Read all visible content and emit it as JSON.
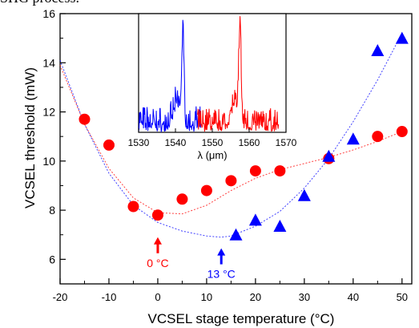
{
  "page": {
    "top_text": "SHG process."
  },
  "chart_data": [
    {
      "type": "scatter",
      "xlabel": "VCSEL stage temperature (°C)",
      "ylabel": "VCSEL threshold (mW)",
      "xlim": [
        -20,
        52
      ],
      "ylim": [
        5,
        16
      ],
      "xticks": [
        "-20",
        "-10",
        "0",
        "10",
        "20",
        "30",
        "40",
        "50"
      ],
      "yticks": [
        "6",
        "8",
        "10",
        "12",
        "14",
        "16"
      ],
      "grid": false,
      "series": [
        {
          "marker": "circle",
          "color": "#ff0000",
          "points": [
            [
              -15,
              11.7
            ],
            [
              -10,
              10.65
            ],
            [
              -5,
              8.15
            ],
            [
              0,
              7.8
            ],
            [
              5,
              8.45
            ],
            [
              10,
              8.8
            ],
            [
              15,
              9.2
            ],
            [
              20,
              9.6
            ],
            [
              25,
              9.6
            ],
            [
              35,
              10.1
            ],
            [
              45,
              11.0
            ],
            [
              50,
              11.2
            ]
          ],
          "fit": [
            [
              -20,
              13.9
            ],
            [
              -15,
              11.5
            ],
            [
              -10,
              9.7
            ],
            [
              -5,
              8.5
            ],
            [
              0,
              7.9
            ],
            [
              5,
              7.85
            ],
            [
              10,
              8.2
            ],
            [
              15,
              8.8
            ],
            [
              20,
              9.3
            ],
            [
              25,
              9.65
            ],
            [
              30,
              9.9
            ],
            [
              35,
              10.15
            ],
            [
              40,
              10.45
            ],
            [
              45,
              10.8
            ],
            [
              50,
              11.2
            ]
          ]
        },
        {
          "marker": "triangle",
          "color": "#0000ff",
          "points": [
            [
              16,
              7.0
            ],
            [
              20,
              7.6
            ],
            [
              25,
              7.35
            ],
            [
              30,
              8.6
            ],
            [
              35,
              10.2
            ],
            [
              40,
              10.9
            ],
            [
              45,
              14.5
            ],
            [
              50,
              15.0
            ]
          ],
          "fit": [
            [
              -20,
              14.1
            ],
            [
              -15,
              11.5
            ],
            [
              -10,
              9.5
            ],
            [
              -5,
              8.2
            ],
            [
              0,
              7.5
            ],
            [
              5,
              7.15
            ],
            [
              10,
              6.95
            ],
            [
              13,
              6.9
            ],
            [
              15,
              6.95
            ],
            [
              20,
              7.35
            ],
            [
              25,
              7.95
            ],
            [
              30,
              8.9
            ],
            [
              35,
              10.1
            ],
            [
              40,
              11.6
            ],
            [
              45,
              13.3
            ],
            [
              50,
              15.2
            ]
          ]
        }
      ],
      "annotations": [
        {
          "text": "0 °C",
          "x": 0,
          "color": "#ff0000"
        },
        {
          "text": "13 °C",
          "x": 13,
          "color": "#0000ff"
        }
      ]
    },
    {
      "type": "line",
      "role": "inset",
      "xlabel": "λ (μm)",
      "xlim": [
        1530,
        1570
      ],
      "xticks": [
        "1530",
        "1540",
        "1550",
        "1560",
        "1570"
      ],
      "series": [
        {
          "color": "#0000ff",
          "range": [
            1530,
            1547
          ],
          "peak_x": 1542,
          "peak_height": 0.72,
          "noise": 0.22
        },
        {
          "color": "#ff0000",
          "range": [
            1546,
            1568
          ],
          "peak_x": 1557.5,
          "peak_height": 0.82,
          "noise": 0.2
        }
      ]
    }
  ]
}
